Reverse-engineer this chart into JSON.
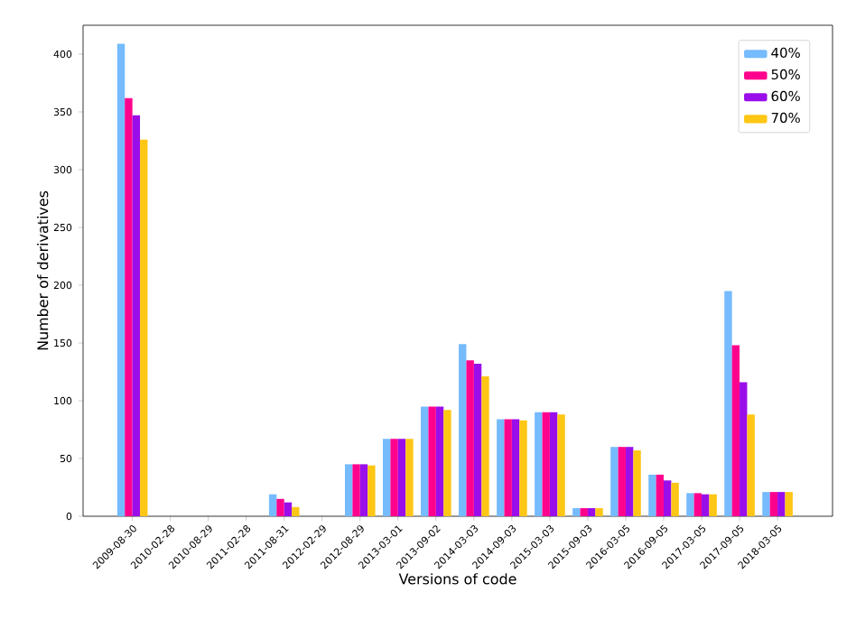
{
  "chart_data": {
    "type": "bar",
    "xlabel": "Versions of code",
    "ylabel": "Number of derivatives",
    "categories": [
      "2009-08-30",
      "2010-02-28",
      "2010-08-29",
      "2011-02-28",
      "2011-08-31",
      "2012-02-29",
      "2012-08-29",
      "2013-03-01",
      "2013-09-02",
      "2014-03-03",
      "2014-09-03",
      "2015-03-03",
      "2015-09-03",
      "2016-03-05",
      "2016-09-05",
      "2017-03-05",
      "2017-09-05",
      "2018-03-05"
    ],
    "series": [
      {
        "name": "40%",
        "color": "#75bbfd",
        "values": [
          409,
          0,
          0,
          0,
          19,
          0,
          45,
          67,
          95,
          149,
          84,
          90,
          7,
          60,
          36,
          20,
          195,
          21
        ]
      },
      {
        "name": "50%",
        "color": "#ff028d",
        "values": [
          362,
          0,
          0,
          0,
          15,
          0,
          45,
          67,
          95,
          135,
          84,
          90,
          7,
          60,
          36,
          20,
          148,
          21
        ]
      },
      {
        "name": "60%",
        "color": "#9a0eea",
        "values": [
          347,
          0,
          0,
          0,
          12,
          0,
          45,
          67,
          95,
          132,
          84,
          90,
          7,
          60,
          31,
          19,
          116,
          21
        ]
      },
      {
        "name": "70%",
        "color": "#fec615",
        "values": [
          326,
          0,
          0,
          0,
          8,
          0,
          44,
          67,
          92,
          121,
          83,
          88,
          7,
          57,
          29,
          19,
          88,
          21
        ]
      }
    ],
    "ylim": [
      0,
      425
    ],
    "yticks": [
      0,
      50,
      100,
      150,
      200,
      250,
      300,
      350,
      400
    ],
    "legend": "top right",
    "grid": false
  }
}
